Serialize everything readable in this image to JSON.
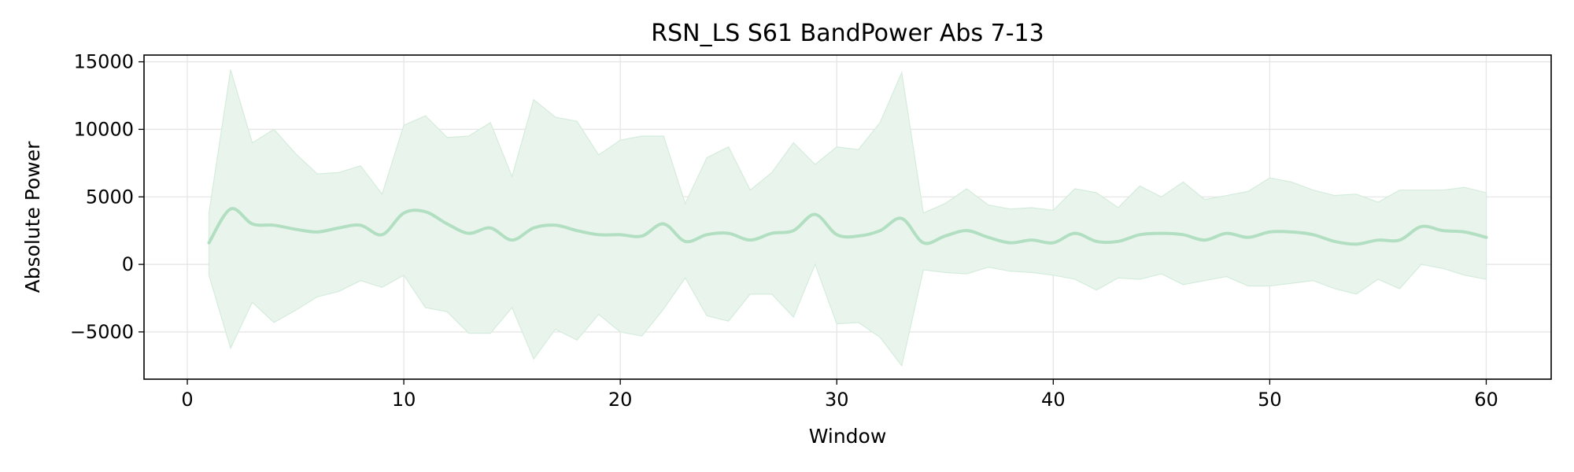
{
  "chart_data": {
    "type": "line",
    "title": "RSN_LS S61 BandPower Abs 7-13",
    "xlabel": "Window",
    "ylabel": "Absolute Power",
    "xlim": [
      -2,
      63
    ],
    "ylim": [
      -8500,
      15500
    ],
    "x_ticks": [
      0,
      10,
      20,
      30,
      40,
      50,
      60
    ],
    "y_ticks": [
      -5000,
      0,
      5000,
      10000,
      15000
    ],
    "x_tick_labels": [
      "0",
      "10",
      "20",
      "30",
      "40",
      "50",
      "60"
    ],
    "y_tick_labels": [
      "−5000",
      "0",
      "5000",
      "10000",
      "15000"
    ],
    "grid": true,
    "legend": "none",
    "colors": {
      "line": "#b2dfc2",
      "band": "#e9f5ec",
      "band_edge": "#d4ecdc"
    },
    "series": [
      {
        "x": [
          1,
          2,
          3,
          4,
          5,
          6,
          7,
          8,
          9,
          10,
          11,
          12,
          13,
          14,
          15,
          16,
          17,
          18,
          19,
          20,
          21,
          22,
          23,
          24,
          25,
          26,
          27,
          28,
          29,
          30,
          31,
          32,
          33,
          34,
          35,
          36,
          37,
          38,
          39,
          40,
          41,
          42,
          43,
          44,
          45,
          46,
          47,
          48,
          49,
          50,
          51,
          52,
          53,
          54,
          55,
          56,
          57,
          58,
          59,
          60
        ],
        "mean": [
          1600,
          4100,
          3000,
          2900,
          2600,
          2400,
          2700,
          2900,
          2200,
          3800,
          3900,
          3000,
          2300,
          2700,
          1800,
          2700,
          2900,
          2500,
          2200,
          2200,
          2100,
          3000,
          1700,
          2200,
          2300,
          1800,
          2300,
          2500,
          3700,
          2200,
          2100,
          2500,
          3400,
          1600,
          2100,
          2500,
          2000,
          1600,
          1800,
          1600,
          2300,
          1700,
          1700,
          2200,
          2300,
          2200,
          1800,
          2300,
          2000,
          2400,
          2400,
          2200,
          1700,
          1500,
          1800,
          1800,
          2800,
          2500,
          2400,
          2000
        ],
        "upper": [
          3800,
          14400,
          9000,
          10000,
          8200,
          6700,
          6800,
          7300,
          5200,
          10300,
          11000,
          9400,
          9500,
          10500,
          6500,
          12200,
          10900,
          10600,
          8100,
          9200,
          9500,
          9500,
          4500,
          7900,
          8700,
          5500,
          6800,
          9000,
          7400,
          8700,
          8500,
          10500,
          14200,
          3800,
          4500,
          5600,
          4400,
          4100,
          4200,
          4000,
          5600,
          5300,
          4200,
          5800,
          5000,
          6100,
          4800,
          5100,
          5400,
          6400,
          6100,
          5500,
          5100,
          5200,
          4600,
          5500,
          5500,
          5500,
          5700,
          5300
        ],
        "lower": [
          -800,
          -6200,
          -2800,
          -4300,
          -3400,
          -2400,
          -2000,
          -1200,
          -1700,
          -800,
          -3200,
          -3500,
          -5100,
          -5100,
          -3200,
          -7000,
          -4800,
          -5600,
          -3700,
          -5000,
          -5300,
          -3300,
          -1000,
          -3800,
          -4200,
          -2200,
          -2200,
          -3900,
          0,
          -4400,
          -4300,
          -5400,
          -7500,
          -400,
          -600,
          -700,
          -200,
          -500,
          -600,
          -800,
          -1100,
          -1900,
          -1000,
          -1100,
          -700,
          -1500,
          -1200,
          -900,
          -1600,
          -1600,
          -1400,
          -1200,
          -1800,
          -2200,
          -1100,
          -1800,
          0,
          -300,
          -800,
          -1100
        ]
      }
    ]
  }
}
